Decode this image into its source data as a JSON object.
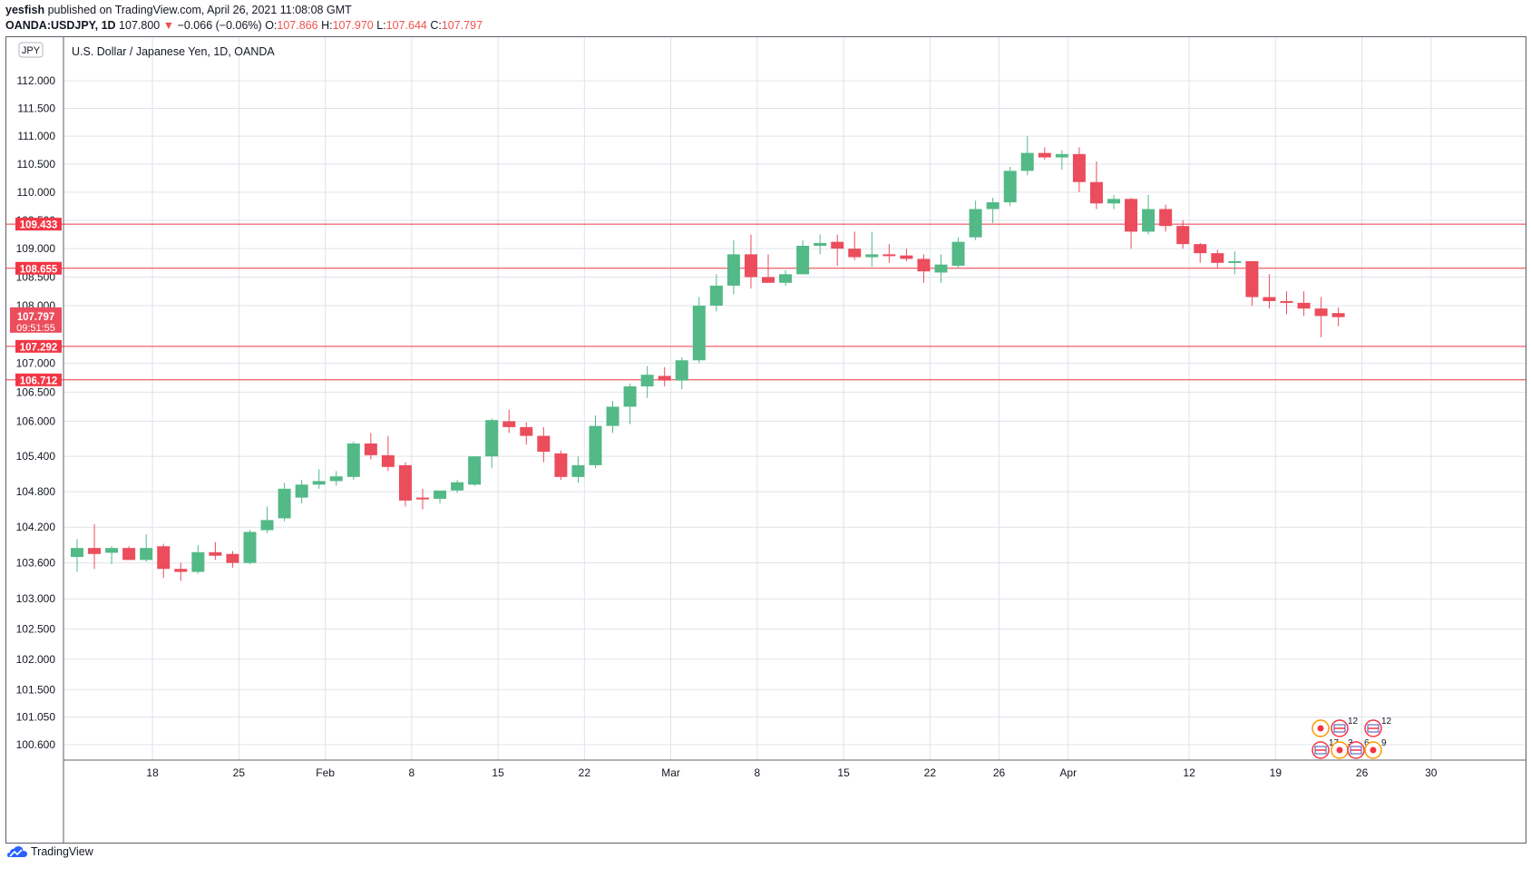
{
  "header": {
    "author": "yesfish",
    "published": "published on TradingView.com, April 26, 2021 11:08:08 GMT",
    "symbol": "OANDA:USDJPY, 1D",
    "last": "107.800",
    "change": "−0.066 (−0.06%)",
    "o_label": "O:",
    "o_value": "107.866",
    "h_label": "H:",
    "h_value": "107.970",
    "l_label": "L:",
    "l_value": "107.644",
    "c_label": "C:",
    "c_value": "107.797"
  },
  "chart_title": "U.S. Dollar / Japanese Yen, 1D, OANDA",
  "currency_badge": "JPY",
  "brand": "TradingView",
  "colors": {
    "up": "#53b987",
    "down": "#eb4d5c",
    "line": "#f23645",
    "grid": "#e0e3eb"
  },
  "chart_data": {
    "type": "candlestick",
    "price_axis_ticks": [
      "112.000",
      "111.500",
      "111.000",
      "110.500",
      "110.000",
      "109.500",
      "109.000",
      "108.500",
      "108.000",
      "107.000",
      "106.500",
      "106.000",
      "105.400",
      "104.800",
      "104.200",
      "103.600",
      "103.000",
      "102.500",
      "102.000",
      "101.500",
      "101.050",
      "100.600"
    ],
    "date_axis_ticks": [
      {
        "label": "18",
        "i": 2
      },
      {
        "label": "25",
        "i": 7
      },
      {
        "label": "Feb",
        "i": 12
      },
      {
        "label": "8",
        "i": 17
      },
      {
        "label": "15",
        "i": 22
      },
      {
        "label": "22",
        "i": 27
      },
      {
        "label": "Mar",
        "i": 32
      },
      {
        "label": "8",
        "i": 37
      },
      {
        "label": "15",
        "i": 42
      },
      {
        "label": "22",
        "i": 47
      },
      {
        "label": "26",
        "i": 51
      },
      {
        "label": "Apr",
        "i": 55
      },
      {
        "label": "12",
        "i": 62
      },
      {
        "label": "19",
        "i": 67
      },
      {
        "label": "26",
        "i": 72
      },
      {
        "label": "30",
        "i": 76
      }
    ],
    "horizontal_levels": [
      {
        "label": "109.433",
        "value": 109.433
      },
      {
        "label": "108.655",
        "value": 108.655
      },
      {
        "label": "107.292",
        "value": 107.292
      },
      {
        "label": "106.712",
        "value": 106.712
      }
    ],
    "last_price": {
      "value": 107.797,
      "label": "107.797",
      "countdown": "09:51:55"
    },
    "event_counts": [
      "12",
      "12",
      "17",
      "3",
      "6",
      "9"
    ],
    "candles": [
      {
        "o": 103.7,
        "h": 104.0,
        "l": 103.45,
        "c": 103.85
      },
      {
        "o": 103.85,
        "h": 104.25,
        "l": 103.5,
        "c": 103.75
      },
      {
        "o": 103.77,
        "h": 103.88,
        "l": 103.58,
        "c": 103.85
      },
      {
        "o": 103.85,
        "h": 103.88,
        "l": 103.65,
        "c": 103.65
      },
      {
        "o": 103.65,
        "h": 104.08,
        "l": 103.62,
        "c": 103.85
      },
      {
        "o": 103.88,
        "h": 103.92,
        "l": 103.35,
        "c": 103.5
      },
      {
        "o": 103.5,
        "h": 103.6,
        "l": 103.3,
        "c": 103.45
      },
      {
        "o": 103.45,
        "h": 103.9,
        "l": 103.42,
        "c": 103.78
      },
      {
        "o": 103.78,
        "h": 103.95,
        "l": 103.65,
        "c": 103.72
      },
      {
        "o": 103.75,
        "h": 103.8,
        "l": 103.52,
        "c": 103.6
      },
      {
        "o": 103.6,
        "h": 104.15,
        "l": 103.58,
        "c": 104.12
      },
      {
        "o": 104.15,
        "h": 104.55,
        "l": 104.1,
        "c": 104.32
      },
      {
        "o": 104.35,
        "h": 104.95,
        "l": 104.3,
        "c": 104.85
      },
      {
        "o": 104.7,
        "h": 105.0,
        "l": 104.6,
        "c": 104.92
      },
      {
        "o": 104.92,
        "h": 105.18,
        "l": 104.85,
        "c": 104.98
      },
      {
        "o": 104.98,
        "h": 105.15,
        "l": 104.9,
        "c": 105.06
      },
      {
        "o": 105.05,
        "h": 105.65,
        "l": 105.0,
        "c": 105.62
      },
      {
        "o": 105.62,
        "h": 105.8,
        "l": 105.35,
        "c": 105.42
      },
      {
        "o": 105.42,
        "h": 105.75,
        "l": 105.15,
        "c": 105.22
      },
      {
        "o": 105.25,
        "h": 105.3,
        "l": 104.55,
        "c": 104.65
      },
      {
        "o": 104.7,
        "h": 104.85,
        "l": 104.5,
        "c": 104.68
      },
      {
        "o": 104.68,
        "h": 104.8,
        "l": 104.6,
        "c": 104.82
      },
      {
        "o": 104.82,
        "h": 105.0,
        "l": 104.78,
        "c": 104.96
      },
      {
        "o": 104.92,
        "h": 105.4,
        "l": 104.9,
        "c": 105.4
      },
      {
        "o": 105.4,
        "h": 106.05,
        "l": 105.2,
        "c": 106.02
      },
      {
        "o": 106.0,
        "h": 106.2,
        "l": 105.8,
        "c": 105.9
      },
      {
        "o": 105.9,
        "h": 105.98,
        "l": 105.6,
        "c": 105.75
      },
      {
        "o": 105.75,
        "h": 105.9,
        "l": 105.3,
        "c": 105.48
      },
      {
        "o": 105.45,
        "h": 105.5,
        "l": 105.0,
        "c": 105.05
      },
      {
        "o": 105.05,
        "h": 105.4,
        "l": 104.95,
        "c": 105.25
      },
      {
        "o": 105.25,
        "h": 106.1,
        "l": 105.2,
        "c": 105.92
      },
      {
        "o": 105.92,
        "h": 106.35,
        "l": 105.8,
        "c": 106.25
      },
      {
        "o": 106.25,
        "h": 106.65,
        "l": 105.95,
        "c": 106.6
      },
      {
        "o": 106.6,
        "h": 106.95,
        "l": 106.4,
        "c": 106.8
      },
      {
        "o": 106.78,
        "h": 106.93,
        "l": 106.6,
        "c": 106.7
      },
      {
        "o": 106.7,
        "h": 107.1,
        "l": 106.55,
        "c": 107.05
      },
      {
        "o": 107.05,
        "h": 108.15,
        "l": 107.0,
        "c": 108.0
      },
      {
        "o": 108.0,
        "h": 108.55,
        "l": 107.9,
        "c": 108.35
      },
      {
        "o": 108.35,
        "h": 109.15,
        "l": 108.2,
        "c": 108.9
      },
      {
        "o": 108.9,
        "h": 109.25,
        "l": 108.3,
        "c": 108.5
      },
      {
        "o": 108.5,
        "h": 108.9,
        "l": 108.4,
        "c": 108.4
      },
      {
        "o": 108.4,
        "h": 108.62,
        "l": 108.35,
        "c": 108.55
      },
      {
        "o": 108.55,
        "h": 109.15,
        "l": 108.55,
        "c": 109.05
      },
      {
        "o": 109.05,
        "h": 109.25,
        "l": 108.9,
        "c": 109.1
      },
      {
        "o": 109.12,
        "h": 109.25,
        "l": 108.7,
        "c": 109.0
      },
      {
        "o": 109.0,
        "h": 109.3,
        "l": 108.8,
        "c": 108.85
      },
      {
        "o": 108.85,
        "h": 109.3,
        "l": 108.68,
        "c": 108.9
      },
      {
        "o": 108.9,
        "h": 109.08,
        "l": 108.75,
        "c": 108.88
      },
      {
        "o": 108.88,
        "h": 109.0,
        "l": 108.78,
        "c": 108.82
      },
      {
        "o": 108.82,
        "h": 108.9,
        "l": 108.4,
        "c": 108.6
      },
      {
        "o": 108.58,
        "h": 108.9,
        "l": 108.4,
        "c": 108.72
      },
      {
        "o": 108.7,
        "h": 109.2,
        "l": 108.65,
        "c": 109.12
      },
      {
        "o": 109.2,
        "h": 109.85,
        "l": 109.15,
        "c": 109.7
      },
      {
        "o": 109.7,
        "h": 109.9,
        "l": 109.45,
        "c": 109.82
      },
      {
        "o": 109.82,
        "h": 110.45,
        "l": 109.75,
        "c": 110.38
      },
      {
        "o": 110.38,
        "h": 111.0,
        "l": 110.3,
        "c": 110.7
      },
      {
        "o": 110.7,
        "h": 110.8,
        "l": 110.58,
        "c": 110.62
      },
      {
        "o": 110.62,
        "h": 110.75,
        "l": 110.4,
        "c": 110.68
      },
      {
        "o": 110.68,
        "h": 110.8,
        "l": 110.0,
        "c": 110.18
      },
      {
        "o": 110.18,
        "h": 110.55,
        "l": 109.7,
        "c": 109.8
      },
      {
        "o": 109.8,
        "h": 109.95,
        "l": 109.7,
        "c": 109.88
      },
      {
        "o": 109.88,
        "h": 109.9,
        "l": 109.0,
        "c": 109.3
      },
      {
        "o": 109.3,
        "h": 109.95,
        "l": 109.25,
        "c": 109.7
      },
      {
        "o": 109.7,
        "h": 109.78,
        "l": 109.3,
        "c": 109.4
      },
      {
        "o": 109.4,
        "h": 109.5,
        "l": 109.0,
        "c": 109.08
      },
      {
        "o": 109.08,
        "h": 109.1,
        "l": 108.75,
        "c": 108.92
      },
      {
        "o": 108.92,
        "h": 108.98,
        "l": 108.65,
        "c": 108.75
      },
      {
        "o": 108.75,
        "h": 108.95,
        "l": 108.55,
        "c": 108.78
      },
      {
        "o": 108.78,
        "h": 108.78,
        "l": 108.0,
        "c": 108.15
      },
      {
        "o": 108.15,
        "h": 108.55,
        "l": 107.95,
        "c": 108.08
      },
      {
        "o": 108.08,
        "h": 108.25,
        "l": 107.85,
        "c": 108.05
      },
      {
        "o": 108.05,
        "h": 108.25,
        "l": 107.82,
        "c": 107.95
      },
      {
        "o": 107.95,
        "h": 108.15,
        "l": 107.45,
        "c": 107.82
      },
      {
        "o": 107.87,
        "h": 107.97,
        "l": 107.64,
        "c": 107.8
      }
    ]
  }
}
